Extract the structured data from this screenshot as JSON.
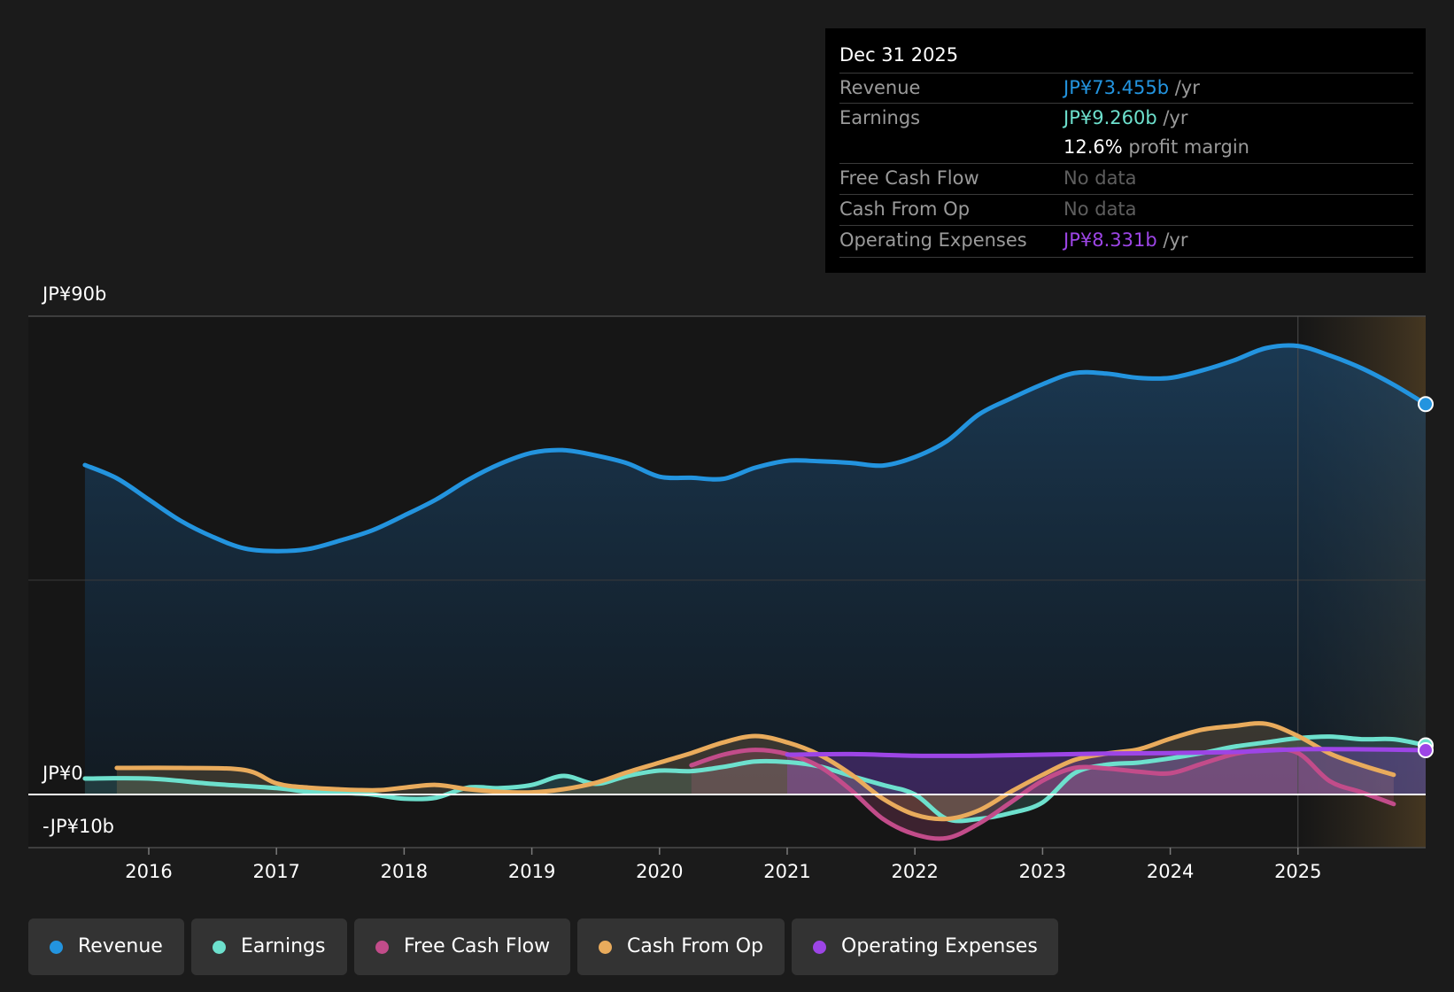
{
  "tooltip": {
    "date": "Dec 31 2025",
    "revenue_label": "Revenue",
    "revenue_value": "JP¥73.455b",
    "earnings_label": "Earnings",
    "earnings_value": "JP¥9.260b",
    "unit": "/yr",
    "margin_value": "12.6%",
    "margin_text": "profit margin",
    "fcf_label": "Free Cash Flow",
    "fcf_value": "No data",
    "cfo_label": "Cash From Op",
    "cfo_value": "No data",
    "opex_label": "Operating Expenses",
    "opex_value": "JP¥8.331b"
  },
  "axis": {
    "y_top": "JP¥90b",
    "y_zero": "JP¥0",
    "y_bottom": "-JP¥10b"
  },
  "legend": [
    {
      "label": "Revenue",
      "color": "#2394df"
    },
    {
      "label": "Earnings",
      "color": "#6de0cd"
    },
    {
      "label": "Free Cash Flow",
      "color": "#c24c8a"
    },
    {
      "label": "Cash From Op",
      "color": "#e9ab5c"
    },
    {
      "label": "Operating Expenses",
      "color": "#9d45e6"
    }
  ],
  "chart_data": {
    "type": "area",
    "ylim": [
      -10,
      90
    ],
    "xlim": [
      2015.1,
      2026.0
    ],
    "x_ticks": [
      2016,
      2017,
      2018,
      2019,
      2020,
      2021,
      2022,
      2023,
      2024,
      2025
    ],
    "forecast_start": 2025.0,
    "series": [
      {
        "name": "Revenue",
        "color": "#2394df",
        "points": [
          [
            2015.5,
            62
          ],
          [
            2015.75,
            59.5
          ],
          [
            2016.0,
            55.5
          ],
          [
            2016.25,
            51.5
          ],
          [
            2016.5,
            48.5
          ],
          [
            2016.75,
            46.3
          ],
          [
            2017.0,
            45.8
          ],
          [
            2017.25,
            46.2
          ],
          [
            2017.5,
            47.8
          ],
          [
            2017.75,
            49.7
          ],
          [
            2018.0,
            52.5
          ],
          [
            2018.25,
            55.5
          ],
          [
            2018.5,
            59.2
          ],
          [
            2018.75,
            62.2
          ],
          [
            2019.0,
            64.3
          ],
          [
            2019.25,
            64.8
          ],
          [
            2019.5,
            63.8
          ],
          [
            2019.75,
            62.3
          ],
          [
            2020.0,
            59.8
          ],
          [
            2020.25,
            59.6
          ],
          [
            2020.5,
            59.4
          ],
          [
            2020.75,
            61.5
          ],
          [
            2021.0,
            62.8
          ],
          [
            2021.25,
            62.7
          ],
          [
            2021.5,
            62.4
          ],
          [
            2021.75,
            61.9
          ],
          [
            2022.0,
            63.5
          ],
          [
            2022.25,
            66.5
          ],
          [
            2022.5,
            71.5
          ],
          [
            2022.75,
            74.5
          ],
          [
            2023.0,
            77.2
          ],
          [
            2023.25,
            79.3
          ],
          [
            2023.5,
            79.2
          ],
          [
            2023.75,
            78.4
          ],
          [
            2024.0,
            78.4
          ],
          [
            2024.25,
            79.8
          ],
          [
            2024.5,
            81.7
          ],
          [
            2024.75,
            84.0
          ],
          [
            2025.0,
            84.4
          ],
          [
            2025.25,
            82.6
          ],
          [
            2025.5,
            80.2
          ],
          [
            2025.75,
            77.1
          ],
          [
            2026.0,
            73.455
          ]
        ]
      },
      {
        "name": "Earnings",
        "color": "#6de0cd",
        "points": [
          [
            2015.5,
            3.0
          ],
          [
            2016.0,
            3.0
          ],
          [
            2016.5,
            2.0
          ],
          [
            2017.0,
            1.2
          ],
          [
            2017.25,
            0.5
          ],
          [
            2017.5,
            0.3
          ],
          [
            2017.75,
            0.0
          ],
          [
            2018.0,
            -0.8
          ],
          [
            2018.25,
            -0.6
          ],
          [
            2018.5,
            1.3
          ],
          [
            2018.75,
            1.2
          ],
          [
            2019.0,
            1.8
          ],
          [
            2019.25,
            3.5
          ],
          [
            2019.5,
            2.0
          ],
          [
            2019.75,
            3.5
          ],
          [
            2020.0,
            4.5
          ],
          [
            2020.25,
            4.4
          ],
          [
            2020.5,
            5.2
          ],
          [
            2020.75,
            6.2
          ],
          [
            2021.0,
            6.1
          ],
          [
            2021.25,
            5.3
          ],
          [
            2021.5,
            3.5
          ],
          [
            2021.75,
            1.8
          ],
          [
            2022.0,
            0.0
          ],
          [
            2022.25,
            -4.6
          ],
          [
            2022.5,
            -4.6
          ],
          [
            2022.75,
            -3.5
          ],
          [
            2023.0,
            -1.5
          ],
          [
            2023.25,
            4.0
          ],
          [
            2023.5,
            5.6
          ],
          [
            2023.75,
            6.0
          ],
          [
            2024.0,
            6.8
          ],
          [
            2024.25,
            7.8
          ],
          [
            2024.5,
            9.0
          ],
          [
            2024.75,
            9.8
          ],
          [
            2025.0,
            10.6
          ],
          [
            2025.25,
            10.9
          ],
          [
            2025.5,
            10.4
          ],
          [
            2025.75,
            10.4
          ],
          [
            2026.0,
            9.26
          ]
        ]
      },
      {
        "name": "Free Cash Flow",
        "color": "#c24c8a",
        "points": [
          [
            2020.25,
            5.5
          ],
          [
            2020.5,
            7.5
          ],
          [
            2020.75,
            8.4
          ],
          [
            2021.0,
            7.6
          ],
          [
            2021.25,
            5.3
          ],
          [
            2021.5,
            0.8
          ],
          [
            2021.75,
            -4.6
          ],
          [
            2022.0,
            -7.5
          ],
          [
            2022.25,
            -8.2
          ],
          [
            2022.5,
            -5.5
          ],
          [
            2022.75,
            -1.5
          ],
          [
            2023.0,
            2.6
          ],
          [
            2023.25,
            5.0
          ],
          [
            2023.5,
            4.9
          ],
          [
            2023.75,
            4.3
          ],
          [
            2024.0,
            4.0
          ],
          [
            2024.25,
            5.8
          ],
          [
            2024.5,
            7.6
          ],
          [
            2024.75,
            8.4
          ],
          [
            2025.0,
            7.8
          ],
          [
            2025.25,
            2.5
          ],
          [
            2025.5,
            0.4
          ],
          [
            2025.75,
            -1.8
          ]
        ]
      },
      {
        "name": "Cash From Op",
        "color": "#e9ab5c",
        "points": [
          [
            2015.75,
            5.0
          ],
          [
            2016.25,
            5.0
          ],
          [
            2016.75,
            4.6
          ],
          [
            2017.0,
            2.1
          ],
          [
            2017.25,
            1.3
          ],
          [
            2017.75,
            0.8
          ],
          [
            2018.0,
            1.3
          ],
          [
            2018.25,
            1.8
          ],
          [
            2018.5,
            1.0
          ],
          [
            2018.75,
            0.5
          ],
          [
            2019.0,
            0.4
          ],
          [
            2019.25,
            1.0
          ],
          [
            2019.5,
            2.2
          ],
          [
            2019.75,
            4.2
          ],
          [
            2020.0,
            6.0
          ],
          [
            2020.25,
            7.8
          ],
          [
            2020.5,
            9.8
          ],
          [
            2020.75,
            11.0
          ],
          [
            2021.0,
            9.8
          ],
          [
            2021.25,
            7.5
          ],
          [
            2021.5,
            3.8
          ],
          [
            2021.75,
            -0.8
          ],
          [
            2022.0,
            -3.8
          ],
          [
            2022.25,
            -4.6
          ],
          [
            2022.5,
            -3.0
          ],
          [
            2022.75,
            0.5
          ],
          [
            2023.0,
            3.7
          ],
          [
            2023.25,
            6.5
          ],
          [
            2023.5,
            7.7
          ],
          [
            2023.75,
            8.5
          ],
          [
            2024.0,
            10.5
          ],
          [
            2024.25,
            12.2
          ],
          [
            2024.5,
            12.9
          ],
          [
            2024.75,
            13.3
          ],
          [
            2025.0,
            11.0
          ],
          [
            2025.25,
            7.7
          ],
          [
            2025.5,
            5.5
          ],
          [
            2025.75,
            3.7
          ]
        ]
      },
      {
        "name": "Operating Expenses",
        "color": "#9d45e6",
        "points": [
          [
            2021.0,
            7.5
          ],
          [
            2021.5,
            7.6
          ],
          [
            2022.0,
            7.3
          ],
          [
            2022.5,
            7.3
          ],
          [
            2023.0,
            7.5
          ],
          [
            2023.5,
            7.7
          ],
          [
            2024.0,
            7.8
          ],
          [
            2024.5,
            8.0
          ],
          [
            2025.0,
            8.5
          ],
          [
            2025.5,
            8.5
          ],
          [
            2026.0,
            8.331
          ]
        ]
      }
    ]
  }
}
